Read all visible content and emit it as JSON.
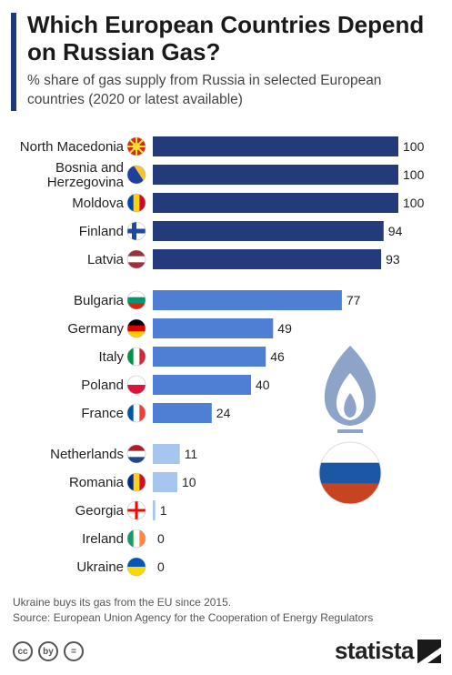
{
  "header": {
    "title": "Which European Countries Depend on Russian Gas?",
    "subtitle": "% share of gas supply from Russia in selected European countries (2020 or latest available)"
  },
  "chart_data": {
    "type": "bar",
    "orientation": "horizontal",
    "title": "Which European Countries Depend on Russian Gas?",
    "subtitle": "% share of gas supply from Russia in selected European countries (2020 or latest available)",
    "xlim": [
      0,
      100
    ],
    "categories": [
      "North Macedonia",
      "Bosnia and Herzegovina",
      "Moldova",
      "Finland",
      "Latvia",
      "Bulgaria",
      "Germany",
      "Italy",
      "Poland",
      "France",
      "Netherlands",
      "Romania",
      "Georgia",
      "Ireland",
      "Ukraine"
    ],
    "values": [
      100,
      100,
      100,
      94,
      93,
      77,
      49,
      46,
      40,
      24,
      11,
      10,
      1,
      0,
      0
    ],
    "groups": [
      {
        "color": "#243a7a",
        "count": 5
      },
      {
        "color": "#4f7fd4",
        "count": 5
      },
      {
        "color": "#a7c6ef",
        "count": 5
      }
    ]
  },
  "flags": [
    "north-macedonia-flag-icon",
    "bosnia-flag-icon",
    "moldova-flag-icon",
    "finland-flag-icon",
    "latvia-flag-icon",
    "bulgaria-flag-icon",
    "germany-flag-icon",
    "italy-flag-icon",
    "poland-flag-icon",
    "france-flag-icon",
    "netherlands-flag-icon",
    "romania-flag-icon",
    "georgia-flag-icon",
    "ireland-flag-icon",
    "ukraine-flag-icon"
  ],
  "illustration": {
    "icon": "gas-flame-icon",
    "flag": "russia-flag-icon"
  },
  "footer": {
    "note": "Ukraine buys its gas from the EU since 2015.",
    "source": "Source: European Union Agency for the Cooperation of Energy Regulators"
  },
  "brand": {
    "name": "statista"
  },
  "license_icons": [
    "cc",
    "by",
    "="
  ]
}
